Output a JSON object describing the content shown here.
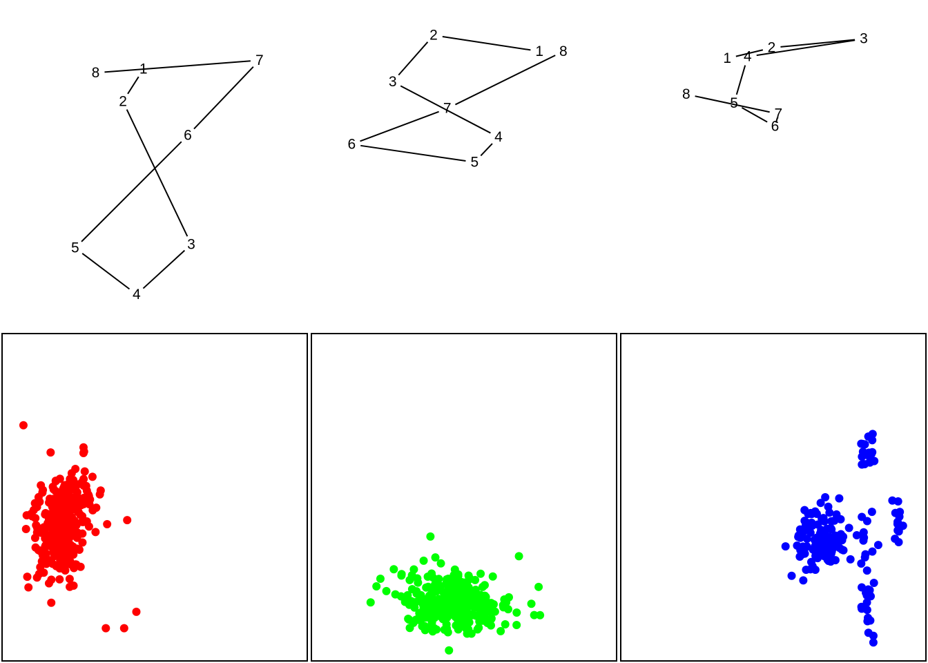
{
  "chart_data": [
    {
      "type": "line",
      "panel": "path-1",
      "line_color": "#000000",
      "order": [
        "8",
        "7",
        "6",
        "5",
        "4",
        "3",
        "2",
        "1"
      ],
      "points": [
        {
          "label": "1",
          "x": 2.05,
          "y": 8.45
        },
        {
          "label": "2",
          "x": 1.75,
          "y": 7.55
        },
        {
          "label": "3",
          "x": 2.75,
          "y": 3.55
        },
        {
          "label": "4",
          "x": 1.95,
          "y": 2.15
        },
        {
          "label": "5",
          "x": 1.05,
          "y": 3.45
        },
        {
          "label": "6",
          "x": 2.7,
          "y": 6.6
        },
        {
          "label": "7",
          "x": 3.75,
          "y": 8.7
        },
        {
          "label": "8",
          "x": 1.35,
          "y": 8.35
        }
      ]
    },
    {
      "type": "line",
      "panel": "path-2",
      "line_color": "#000000",
      "order": [
        "1",
        "2",
        "3",
        "4",
        "5",
        "6",
        "7",
        "8"
      ],
      "points": [
        {
          "label": "1",
          "x": 7.85,
          "y": 8.95
        },
        {
          "label": "2",
          "x": 6.3,
          "y": 9.4
        },
        {
          "label": "3",
          "x": 5.7,
          "y": 8.1
        },
        {
          "label": "4",
          "x": 7.25,
          "y": 6.55
        },
        {
          "label": "5",
          "x": 6.9,
          "y": 5.85
        },
        {
          "label": "6",
          "x": 5.1,
          "y": 6.35
        },
        {
          "label": "7",
          "x": 6.5,
          "y": 7.35
        },
        {
          "label": "8",
          "x": 8.2,
          "y": 8.95
        }
      ]
    },
    {
      "type": "line",
      "panel": "path-3",
      "line_color": "#000000",
      "order": [
        "1",
        "2",
        "3",
        "4",
        "5",
        "6",
        "7",
        "8"
      ],
      "points": [
        {
          "label": "1",
          "x": 10.6,
          "y": 8.75
        },
        {
          "label": "2",
          "x": 11.25,
          "y": 9.05
        },
        {
          "label": "3",
          "x": 12.6,
          "y": 9.3
        },
        {
          "label": "4",
          "x": 10.9,
          "y": 8.8
        },
        {
          "label": "5",
          "x": 10.7,
          "y": 7.5
        },
        {
          "label": "6",
          "x": 11.3,
          "y": 6.85
        },
        {
          "label": "7",
          "x": 11.35,
          "y": 7.2
        },
        {
          "label": "8",
          "x": 10.0,
          "y": 7.75
        }
      ]
    },
    {
      "type": "scatter",
      "panel": "scatter-red",
      "color": "#ff0000",
      "cluster": {
        "center": [
          0.2,
          0.42
        ],
        "spread": [
          0.045,
          0.085
        ],
        "rotate": 0.55,
        "n": 340
      },
      "outliers": [
        [
          0.07,
          0.72
        ],
        [
          0.41,
          0.43
        ],
        [
          0.44,
          0.15
        ],
        [
          0.4,
          0.1
        ],
        [
          0.34,
          0.1
        ]
      ]
    },
    {
      "type": "scatter",
      "panel": "scatter-green",
      "color": "#00ff00",
      "cluster": {
        "center": [
          0.47,
          0.18
        ],
        "spread": [
          0.095,
          0.045
        ],
        "rotate": 0.0,
        "n": 300
      },
      "outliers": [
        [
          0.27,
          0.28
        ],
        [
          0.39,
          0.38
        ],
        [
          0.68,
          0.32
        ],
        [
          0.73,
          0.14
        ]
      ]
    },
    {
      "type": "scatter",
      "panel": "scatter-blue",
      "color": "#0000ff",
      "clusters": [
        {
          "center": [
            0.66,
            0.37
          ],
          "spread": [
            0.04,
            0.05
          ],
          "n": 110
        },
        {
          "center": [
            0.81,
            0.64
          ],
          "spread": [
            0.018,
            0.03
          ],
          "n": 22
        },
        {
          "center": [
            0.81,
            0.25
          ],
          "spread": [
            0.015,
            0.1
          ],
          "n": 30
        },
        {
          "center": [
            0.91,
            0.41
          ],
          "spread": [
            0.008,
            0.03
          ],
          "n": 12
        }
      ],
      "outliers": [
        [
          0.54,
          0.35
        ],
        [
          0.67,
          0.5
        ],
        [
          0.79,
          0.44
        ],
        [
          0.89,
          0.49
        ],
        [
          0.56,
          0.26
        ]
      ]
    }
  ]
}
